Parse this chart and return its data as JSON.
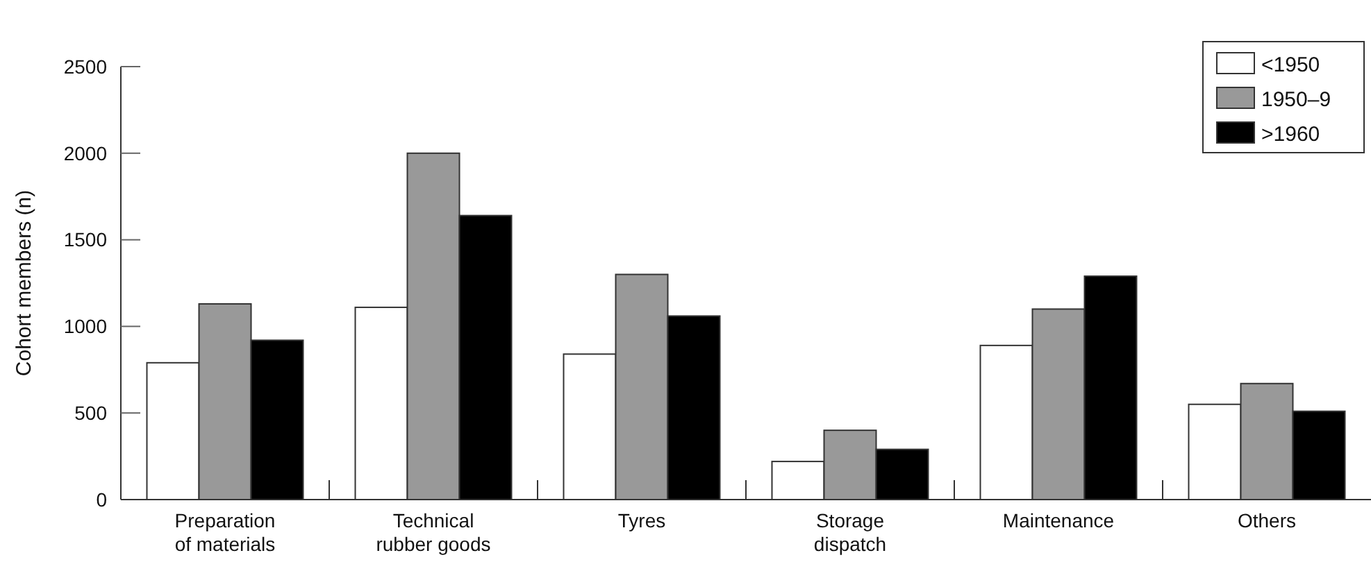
{
  "chart_data": {
    "type": "bar",
    "ylabel": "Cohort members (n)",
    "categories": [
      "Preparation of materials",
      "Technical rubber goods",
      "Tyres",
      "Storage dispatch",
      "Maintenance",
      "Others"
    ],
    "series": [
      {
        "name": "<1950",
        "color": "#ffffff",
        "values": [
          790,
          1110,
          840,
          220,
          890,
          550
        ]
      },
      {
        "name": "1950–9",
        "color": "#999999",
        "values": [
          1130,
          2000,
          1300,
          400,
          1100,
          670
        ]
      },
      {
        "name": ">1960",
        "color": "#000000",
        "values": [
          920,
          1640,
          1060,
          290,
          1290,
          510
        ]
      }
    ],
    "ylim": [
      0,
      2500
    ],
    "yticks": [
      0,
      500,
      1000,
      1500,
      2000,
      2500
    ],
    "legend": "top right",
    "grid": false
  }
}
